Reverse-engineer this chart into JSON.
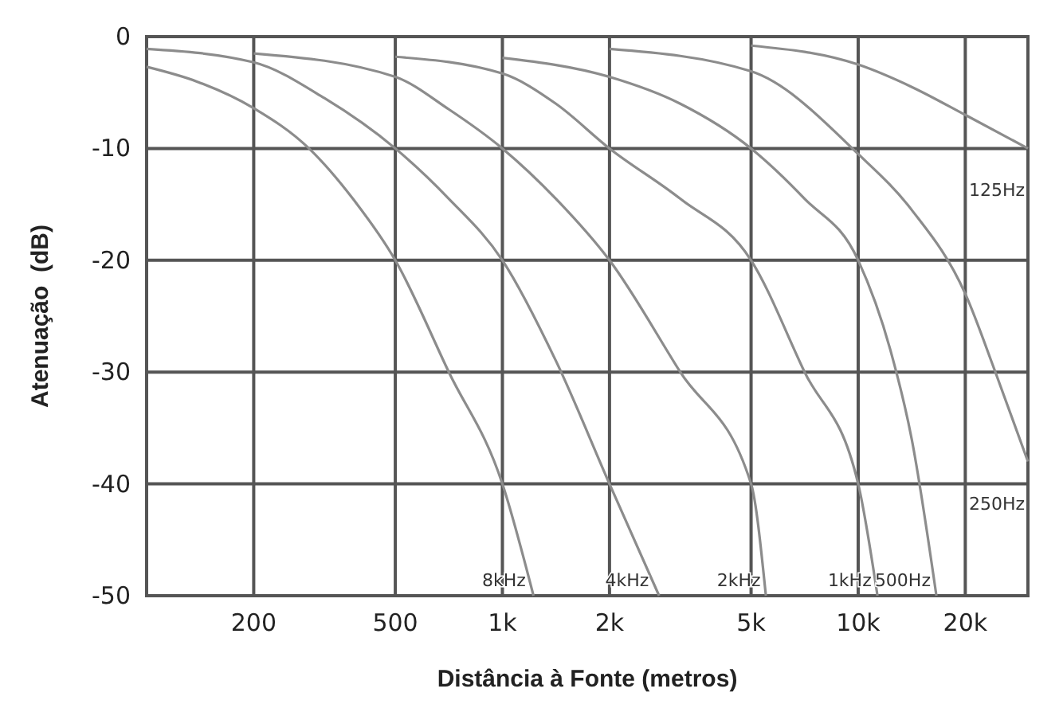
{
  "chart_data": {
    "type": "line",
    "xlabel": "Distância à Fonte (metros)",
    "ylabel": "Atenuação  (dB)",
    "xlim": [
      100,
      30000
    ],
    "xticks": [
      {
        "value": 200,
        "label": "200"
      },
      {
        "value": 500,
        "label": "500"
      },
      {
        "value": 1000,
        "label": "1k"
      },
      {
        "value": 2000,
        "label": "2k"
      },
      {
        "value": 5000,
        "label": "5k"
      },
      {
        "value": 10000,
        "label": "10k"
      },
      {
        "value": 20000,
        "label": "20k"
      }
    ],
    "ylim": [
      -50,
      0
    ],
    "yticks": [
      0,
      -10,
      -20,
      -30,
      -40,
      -50
    ],
    "grid": true,
    "log": "x",
    "marker": "none",
    "line_style": "solid",
    "series": [
      {
        "name": "8kHz",
        "color": "#8c8c8c",
        "x": [
          100,
          138,
          200,
          286,
          380,
          500,
          707,
          1000,
          1223
        ],
        "values": [
          -2.7,
          -4,
          -6.4,
          -10,
          -14.5,
          -20,
          -30,
          -40,
          -50
        ]
      },
      {
        "name": "4kHz",
        "color": "#8c8c8c",
        "x": [
          100,
          200,
          316,
          500,
          707,
          1000,
          1414,
          2000,
          2757
        ],
        "values": [
          -1.1,
          -2.3,
          -5.5,
          -10,
          -14.5,
          -20,
          -29,
          -40,
          -50
        ]
      },
      {
        "name": "2kHz",
        "color": "#8c8c8c",
        "x": [
          200,
          500,
          707,
          1000,
          1414,
          2000,
          3162,
          5000,
          5503
        ],
        "values": [
          -1.5,
          -3.6,
          -6.5,
          -10,
          -14.5,
          -20,
          -30,
          -40,
          -50
        ]
      },
      {
        "name": "1kHz",
        "color": "#8c8c8c",
        "x": [
          500,
          1000,
          1414,
          2000,
          3162,
          5000,
          7071,
          10000,
          11330
        ],
        "values": [
          -1.8,
          -3.3,
          -6,
          -10,
          -14.5,
          -20,
          -30,
          -40,
          -50
        ]
      },
      {
        "name": "500Hz",
        "color": "#8c8c8c",
        "x": [
          1000,
          2000,
          3162,
          5000,
          7071,
          10000,
          12311,
          14142,
          16590
        ],
        "values": [
          -1.9,
          -3.6,
          -6,
          -10,
          -14.5,
          -20,
          -28,
          -36,
          -50
        ]
      },
      {
        "name": "250Hz",
        "color": "#8c8c8c",
        "x": [
          2000,
          5000,
          10000,
          14142,
          20000,
          24300,
          30000
        ],
        "values": [
          -1.1,
          -3.1,
          -10.5,
          -15.5,
          -23,
          -30,
          -38
        ]
      },
      {
        "name": "125Hz",
        "color": "#8c8c8c",
        "x": [
          5000,
          10000,
          14142,
          20000,
          30000
        ],
        "values": [
          -0.8,
          -2.5,
          -4.5,
          -7,
          -10
        ]
      }
    ]
  }
}
